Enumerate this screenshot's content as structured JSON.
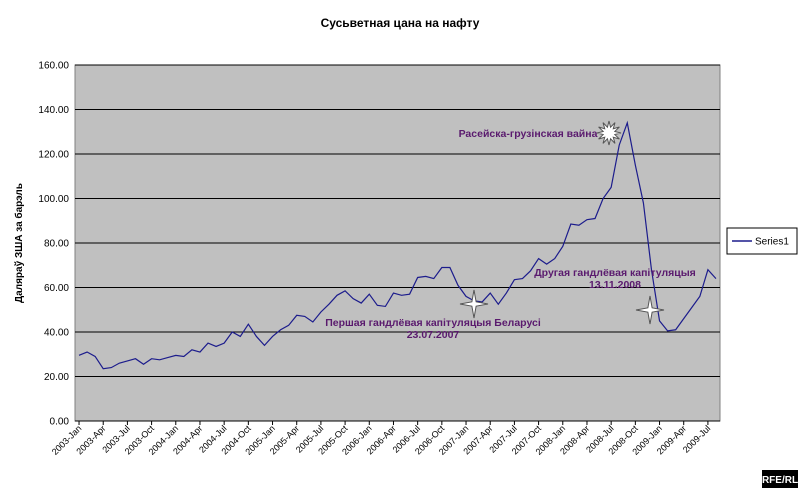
{
  "chart_data": {
    "type": "line",
    "title": "Сусьветная цана на нафту",
    "y_label": "Даляраў ЗША за барэль",
    "categories": [
      "2003-Jan",
      null,
      null,
      "2003-Apr",
      null,
      null,
      "2003-Jul",
      null,
      null,
      "2003-Oct",
      null,
      null,
      "2004-Jan",
      null,
      null,
      "2004-Apr",
      null,
      null,
      "2004-Jul",
      null,
      null,
      "2004-Oct",
      null,
      null,
      "2005-Jan",
      null,
      null,
      "2005-Apr",
      null,
      null,
      "2005-Jul",
      null,
      null,
      "2005-Oct",
      null,
      null,
      "2006-Jan",
      null,
      null,
      "2006-Apr",
      null,
      null,
      "2006-Jul",
      null,
      null,
      "2006-Oct",
      null,
      null,
      "2007-Jan",
      null,
      null,
      "2007-Apr",
      null,
      null,
      "2007-Jul",
      null,
      null,
      "2007-Oct",
      null,
      null,
      "2008-Jan",
      null,
      null,
      "2008-Apr",
      null,
      null,
      "2008-Jul",
      null,
      null,
      "2008-Oct",
      null,
      null,
      "2009-Jan",
      null,
      null,
      "2009-Apr",
      null,
      null,
      "2009-Jul",
      null
    ],
    "series": [
      {
        "name": "Series1",
        "color": "#1c1c8c",
        "values": [
          29.5,
          31,
          29,
          23.5,
          24,
          26,
          27,
          28,
          25.5,
          28,
          27.5,
          28.5,
          29.5,
          29,
          32,
          31,
          35,
          33.5,
          35,
          40,
          38,
          43.5,
          38,
          34,
          38,
          41,
          43,
          47.5,
          47,
          44.5,
          49,
          52.5,
          56.5,
          58.5,
          55,
          53,
          57,
          52,
          51.5,
          57.5,
          56.5,
          57,
          64.5,
          65,
          64,
          69,
          69,
          61,
          56,
          54,
          53.5,
          57.5,
          52.5,
          57.5,
          63.5,
          64,
          67.5,
          73,
          70.5,
          73,
          78.5,
          88.5,
          88,
          90.5,
          91,
          100,
          105,
          124,
          134,
          115,
          98,
          68,
          45,
          40.5,
          41,
          46,
          51,
          56,
          68,
          64
        ]
      }
    ],
    "ylim": [
      0,
      160
    ],
    "yticks": [
      {
        "value": 0,
        "label": "0.00"
      },
      {
        "value": 20,
        "label": "20.00"
      },
      {
        "value": 40,
        "label": "40.00"
      },
      {
        "value": 60,
        "label": "60.00"
      },
      {
        "value": 80,
        "label": "80.00"
      },
      {
        "value": 100,
        "label": "100.00"
      },
      {
        "value": 120,
        "label": "120.00"
      },
      {
        "value": 140,
        "label": "140.00"
      },
      {
        "value": 160,
        "label": "160.00"
      }
    ],
    "grid": true,
    "annotations": [
      [
        "Расейска-грузінская вайна"
      ],
      [
        "Першая гандлёвая капітуляцыя Беларусі",
        "23.07.2007"
      ],
      [
        "Другая гандлёвая капітуляцыя",
        "13.11.2008"
      ]
    ],
    "watermark": "RFE/RL"
  }
}
